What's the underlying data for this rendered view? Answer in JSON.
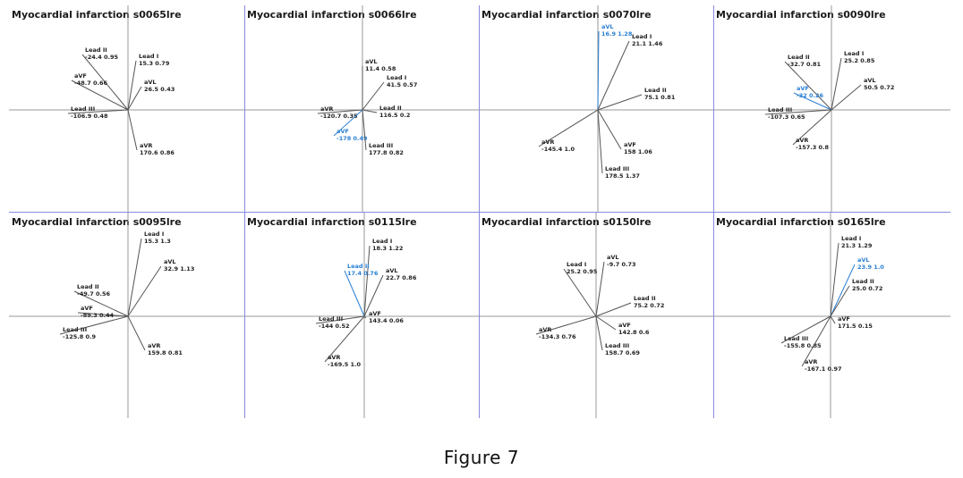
{
  "caption": "Figure 7",
  "colors": {
    "lead": "#555555",
    "highlight": "#2a7fd4",
    "axis": "#9a9a9a",
    "divider": "#8a8ae0"
  },
  "panels": [
    {
      "title": "Myocardial infarction  s0065lre",
      "leads": [
        {
          "name": "Lead I",
          "angle": "15.3",
          "amplitude": "0.79",
          "highlight": false
        },
        {
          "name": "Lead II",
          "angle": "-24.4",
          "amplitude": "0.95",
          "highlight": false
        },
        {
          "name": "aVL",
          "angle": "26.5",
          "amplitude": "0.43",
          "highlight": false
        },
        {
          "name": "aVF",
          "angle": "-48.7",
          "amplitude": "0.66",
          "highlight": false
        },
        {
          "name": "Lead III",
          "angle": "-106.9",
          "amplitude": "0.48",
          "highlight": false
        },
        {
          "name": "aVR",
          "angle": "170.6",
          "amplitude": "0.86",
          "highlight": false
        }
      ]
    },
    {
      "title": "Myocardial infarction  s0066lre",
      "leads": [
        {
          "name": "aVL",
          "angle": "11.4",
          "amplitude": "0.58",
          "highlight": false
        },
        {
          "name": "Lead I",
          "angle": "41.5",
          "amplitude": "0.57",
          "highlight": false
        },
        {
          "name": "Lead II",
          "angle": "116.5",
          "amplitude": "0.2",
          "highlight": false
        },
        {
          "name": "aVR",
          "angle": "-120.7",
          "amplitude": "0.35",
          "highlight": false
        },
        {
          "name": "aVF",
          "angle": "-178",
          "amplitude": "0.49",
          "highlight": true
        },
        {
          "name": "Lead III",
          "angle": "177.8",
          "amplitude": "0.82",
          "highlight": false
        }
      ]
    },
    {
      "title": "Myocardial infarction  s0070lre",
      "leads": [
        {
          "name": "aVL",
          "angle": "16.9",
          "amplitude": "1.28",
          "highlight": true
        },
        {
          "name": "Lead I",
          "angle": "21.1",
          "amplitude": "1.46",
          "highlight": false
        },
        {
          "name": "Lead II",
          "angle": "75.1",
          "amplitude": "0.81",
          "highlight": false
        },
        {
          "name": "aVR",
          "angle": "-145.4",
          "amplitude": "1.0",
          "highlight": false
        },
        {
          "name": "aVF",
          "angle": "158",
          "amplitude": "1.06",
          "highlight": false
        },
        {
          "name": "Lead III",
          "angle": "178.5",
          "amplitude": "1.37",
          "highlight": false
        }
      ]
    },
    {
      "title": "Myocardial infarction  s0090lre",
      "leads": [
        {
          "name": "Lead I",
          "angle": "25.2",
          "amplitude": "0.85",
          "highlight": false
        },
        {
          "name": "Lead II",
          "angle": "-32.7",
          "amplitude": "0.81",
          "highlight": false
        },
        {
          "name": "aVL",
          "angle": "50.5",
          "amplitude": "0.72",
          "highlight": false
        },
        {
          "name": "aVF",
          "angle": "-32",
          "amplitude": "0.26",
          "highlight": true
        },
        {
          "name": "Lead III",
          "angle": "-107.3",
          "amplitude": "0.65",
          "highlight": false
        },
        {
          "name": "aVR",
          "angle": "-157.3",
          "amplitude": "0.8",
          "highlight": false
        }
      ]
    },
    {
      "title": "Myocardial infarction  s0095lre",
      "leads": [
        {
          "name": "Lead I",
          "angle": "15.3",
          "amplitude": "1.3",
          "highlight": false
        },
        {
          "name": "aVL",
          "angle": "32.9",
          "amplitude": "1.13",
          "highlight": false
        },
        {
          "name": "Lead II",
          "angle": "-49.7",
          "amplitude": "0.56",
          "highlight": false
        },
        {
          "name": "aVF",
          "angle": "-89.3",
          "amplitude": "0.44",
          "highlight": false
        },
        {
          "name": "Lead III",
          "angle": "-125.8",
          "amplitude": "0.9",
          "highlight": false
        },
        {
          "name": "aVR",
          "angle": "159.8",
          "amplitude": "0.81",
          "highlight": false
        }
      ]
    },
    {
      "title": "Myocardial infarction  s0115lre",
      "leads": [
        {
          "name": "Lead I",
          "angle": "18.3",
          "amplitude": "1.22",
          "highlight": false
        },
        {
          "name": "Lead II",
          "angle": "17.4",
          "amplitude": "0.76",
          "highlight": true
        },
        {
          "name": "aVL",
          "angle": "22.7",
          "amplitude": "0.86",
          "highlight": false
        },
        {
          "name": "aVF",
          "angle": "143.4",
          "amplitude": "0.06",
          "highlight": false
        },
        {
          "name": "Lead III",
          "angle": "-144",
          "amplitude": "0.52",
          "highlight": false
        },
        {
          "name": "aVR",
          "angle": "-169.5",
          "amplitude": "1.0",
          "highlight": false
        }
      ]
    },
    {
      "title": "Myocardial infarction  s0150lre",
      "leads": [
        {
          "name": "aVL",
          "angle": "-9.7",
          "amplitude": "0.73",
          "highlight": false
        },
        {
          "name": "Lead I",
          "angle": "25.2",
          "amplitude": "0.95",
          "highlight": false
        },
        {
          "name": "Lead II",
          "angle": "75.2",
          "amplitude": "0.72",
          "highlight": false
        },
        {
          "name": "aVR",
          "angle": "-134.3",
          "amplitude": "0.76",
          "highlight": false
        },
        {
          "name": "aVF",
          "angle": "142.8",
          "amplitude": "0.6",
          "highlight": false
        },
        {
          "name": "Lead III",
          "angle": "158.7",
          "amplitude": "0.69",
          "highlight": false
        }
      ]
    },
    {
      "title": "Myocardial infarction  s0165lre",
      "leads": [
        {
          "name": "Lead I",
          "angle": "21.3",
          "amplitude": "1.29",
          "highlight": false
        },
        {
          "name": "aVL",
          "angle": "23.9",
          "amplitude": "1.0",
          "highlight": true
        },
        {
          "name": "Lead II",
          "angle": "25.0",
          "amplitude": "0.72",
          "highlight": false
        },
        {
          "name": "aVF",
          "angle": "171.5",
          "amplitude": "0.15",
          "highlight": false
        },
        {
          "name": "Lead III",
          "angle": "-155.8",
          "amplitude": "0.85",
          "highlight": false
        },
        {
          "name": "aVR",
          "angle": "-167.1",
          "amplitude": "0.97",
          "highlight": false
        }
      ]
    }
  ]
}
